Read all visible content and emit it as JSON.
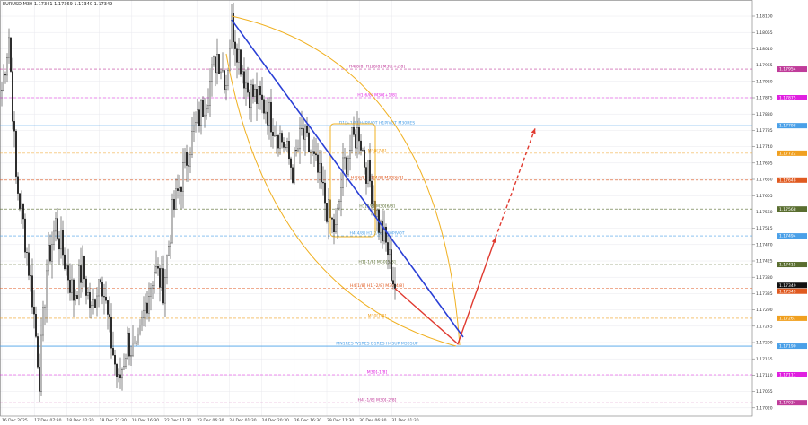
{
  "header": {
    "symbol_line": "EURUSD,M30  1.17341 1.17369 1.17340 1.17349"
  },
  "colors": {
    "candle": "#111111",
    "grid": "#e8e8ee",
    "trend_blue": "#2a3fd6",
    "projection_red": "#e03a30",
    "arc_orange": "#f0b020"
  },
  "chart_data": {
    "type": "candlestick",
    "symbol": "EURUSD",
    "timeframe": "M30",
    "ylim": [
      1.17,
      1.1813
    ],
    "grid": true,
    "y_ticks": [
      "1.18100",
      "1.18055",
      "1.18010",
      "1.17965",
      "1.17920",
      "1.17875",
      "1.17830",
      "1.17785",
      "1.17740",
      "1.17695",
      "1.17650",
      "1.17605",
      "1.17560",
      "1.17515",
      "1.17470",
      "1.17425",
      "1.17380",
      "1.17335",
      "1.17290",
      "1.17245",
      "1.17200",
      "1.17155",
      "1.17110",
      "1.17065",
      "1.17020"
    ],
    "x_ticks": [
      "16 Dec 2025",
      "17 Dec 07:30",
      "18 Dec 02:30",
      "18 Dec 21:30",
      "19 Dec 16:30",
      "22 Dec 11:30",
      "23 Dec 06:30",
      "24 Dec 01:30",
      "24 Dec 20:30",
      "26 Dec 16:30",
      "29 Dec 11:30",
      "30 Dec 06:30",
      "31 Dec 01:30"
    ],
    "close_path": [
      [
        0,
        1.17897
      ],
      [
        4,
        1.18046
      ],
      [
        8,
        1.1765
      ],
      [
        12,
        1.17527
      ],
      [
        17,
        1.17329
      ],
      [
        21,
        1.17106
      ],
      [
        25,
        1.17403
      ],
      [
        30,
        1.17527
      ],
      [
        35,
        1.17427
      ],
      [
        40,
        1.17329
      ],
      [
        45,
        1.17403
      ],
      [
        50,
        1.17279
      ],
      [
        55,
        1.17403
      ],
      [
        60,
        1.1723
      ],
      [
        65,
        1.17081
      ],
      [
        70,
        1.17205
      ],
      [
        75,
        1.17156
      ],
      [
        80,
        1.17304
      ],
      [
        85,
        1.17403
      ],
      [
        90,
        1.17353
      ],
      [
        95,
        1.17551
      ],
      [
        100,
        1.1765
      ],
      [
        105,
        1.17749
      ],
      [
        110,
        1.17823
      ],
      [
        115,
        1.17897
      ],
      [
        120,
        1.17996
      ],
      [
        125,
        1.17922
      ],
      [
        128,
        1.18083
      ],
      [
        132,
        1.17996
      ],
      [
        137,
        1.17897
      ],
      [
        142,
        1.17873
      ],
      [
        147,
        1.17848
      ],
      [
        152,
        1.17798
      ],
      [
        157,
        1.17749
      ],
      [
        162,
        1.17675
      ],
      [
        167,
        1.17774
      ],
      [
        172,
        1.17724
      ],
      [
        177,
        1.1765
      ],
      [
        182,
        1.17551
      ],
      [
        186,
        1.17502
      ],
      [
        190,
        1.17675
      ],
      [
        195,
        1.17749
      ],
      [
        199,
        1.17786
      ],
      [
        202,
        1.177
      ],
      [
        206,
        1.17625
      ],
      [
        210,
        1.17527
      ],
      [
        215,
        1.17452
      ],
      [
        219,
        1.17349
      ]
    ],
    "last_price": "1.17349",
    "levels": [
      {
        "label": "H4[8/8] H1[8/8] M30[+2/8]",
        "price": "1.17954",
        "color": "#c03c9a",
        "style": "dashed"
      },
      {
        "label": "H1[6/8] M30[+1/8]",
        "price": "1.17875",
        "color": "#e020e0",
        "style": "dashed"
      },
      {
        "label": "D1[+1/8] H4PIVOT H1PIVOT M30RES",
        "price": "1.17798",
        "color": "#4aa0e8",
        "style": "solid"
      },
      {
        "label": "M30[7/8]",
        "price": "1.17722",
        "color": "#f0a020",
        "style": "dashed"
      },
      {
        "label": "H4[6/8] H1[4/8] M30[6/8]",
        "price": "1.17648",
        "color": "#e05a20",
        "style": "dashed"
      },
      {
        "label": "H1[3/8] M30[6/8]",
        "price": "1.17568",
        "color": "#5a6e30",
        "style": "dashed"
      },
      {
        "label": "H4[4/8] H1[2/8] M30PIVOT",
        "price": "1.17494",
        "color": "#4aa0e8",
        "style": "dashed"
      },
      {
        "label": "H1[-1/8] M30[5/8]",
        "price": "1.17415",
        "color": "#5a6e30",
        "style": "dashed"
      },
      {
        "label": "H4[1/8] H1[-2/8] M30[4/8]",
        "price": "1.17349",
        "color": "#e05a20",
        "style": "dashed"
      },
      {
        "label": "M30[1/8]",
        "price": "1.17267",
        "color": "#f0a020",
        "style": "dashed"
      },
      {
        "label": "MN1RES W1RES D1RES H4SUP M30SUP",
        "price": "1.17190",
        "color": "#4aa0e8",
        "style": "solid"
      },
      {
        "label": "M30[-1/8]",
        "price": "1.17111",
        "color": "#e020e0",
        "style": "dashed"
      },
      {
        "label": "H4[-1/8] M30[-2/8]",
        "price": "1.17034",
        "color": "#c03c9a",
        "style": "dashed"
      }
    ],
    "drawings": {
      "trend_line": [
        [
          128,
          1.1809
        ],
        [
          257,
          1.17215
        ]
      ],
      "projection": [
        [
          219,
          1.17349
        ],
        [
          254,
          1.17196
        ],
        [
          275,
          1.17489
        ]
      ],
      "projection_dashed": [
        [
          275,
          1.17489
        ],
        [
          297,
          1.1779
        ]
      ]
    }
  }
}
